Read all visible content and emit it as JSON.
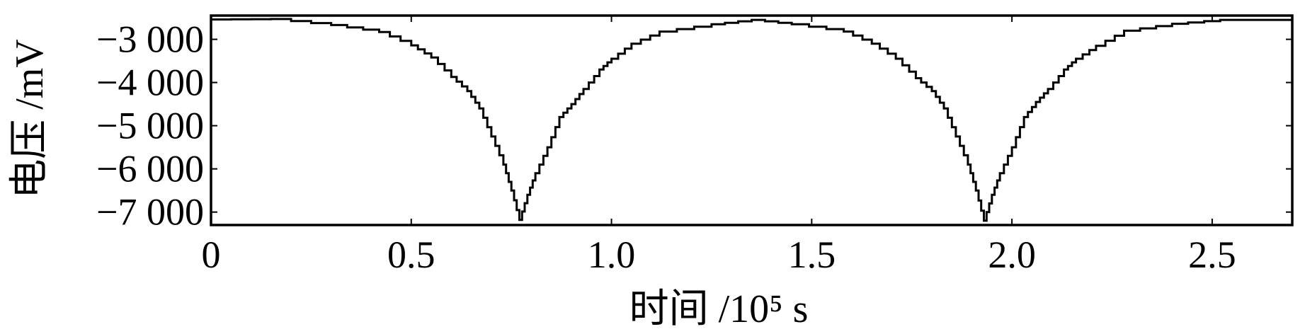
{
  "chart_data": {
    "type": "line",
    "title": "",
    "xlabel": "时间 /10⁵ s",
    "ylabel": "电压 /mV",
    "xlim": [
      0,
      2.7
    ],
    "ylim": [
      -7300,
      -2450
    ],
    "x_ticks": [
      {
        "value": 0,
        "label": "0"
      },
      {
        "value": 0.5,
        "label": "0.5"
      },
      {
        "value": 1.0,
        "label": "1.0"
      },
      {
        "value": 1.5,
        "label": "1.5"
      },
      {
        "value": 2.0,
        "label": "2.0"
      },
      {
        "value": 2.5,
        "label": "2.5"
      }
    ],
    "y_ticks": [
      {
        "value": -3000,
        "label": "−3 000"
      },
      {
        "value": -4000,
        "label": "−4 000"
      },
      {
        "value": -5000,
        "label": "−5 000"
      },
      {
        "value": -6000,
        "label": "−6 000"
      },
      {
        "value": -7000,
        "label": "−7 000"
      }
    ],
    "grid": true,
    "legend": "none",
    "series": [
      {
        "color": "#000000",
        "x": [
          0,
          0.15,
          0.3,
          0.42,
          0.5,
          0.55,
          0.6,
          0.64,
          0.67,
          0.7,
          0.73,
          0.75,
          0.77,
          0.79,
          0.81,
          0.84,
          0.87,
          0.9,
          0.93,
          0.97,
          1.0,
          1.05,
          1.12,
          1.25,
          1.35,
          1.45,
          1.58,
          1.65,
          1.71,
          1.76,
          1.8,
          1.83,
          1.86,
          1.89,
          1.91,
          1.93,
          1.95,
          1.97,
          2.0,
          2.03,
          2.06,
          2.09,
          2.13,
          2.16,
          2.21,
          2.28,
          2.4,
          2.52,
          2.7
        ],
        "y": [
          -2540,
          -2530,
          -2670,
          -2830,
          -3140,
          -3420,
          -3870,
          -4200,
          -4600,
          -5250,
          -5900,
          -6500,
          -7180,
          -6600,
          -6100,
          -5500,
          -4800,
          -4500,
          -4150,
          -3700,
          -3450,
          -3100,
          -2820,
          -2650,
          -2550,
          -2650,
          -2820,
          -3100,
          -3450,
          -3900,
          -4200,
          -4600,
          -5250,
          -5900,
          -6500,
          -7200,
          -6600,
          -6100,
          -5500,
          -4800,
          -4450,
          -4150,
          -3700,
          -3450,
          -3150,
          -2800,
          -2640,
          -2550,
          -2550
        ]
      }
    ]
  }
}
